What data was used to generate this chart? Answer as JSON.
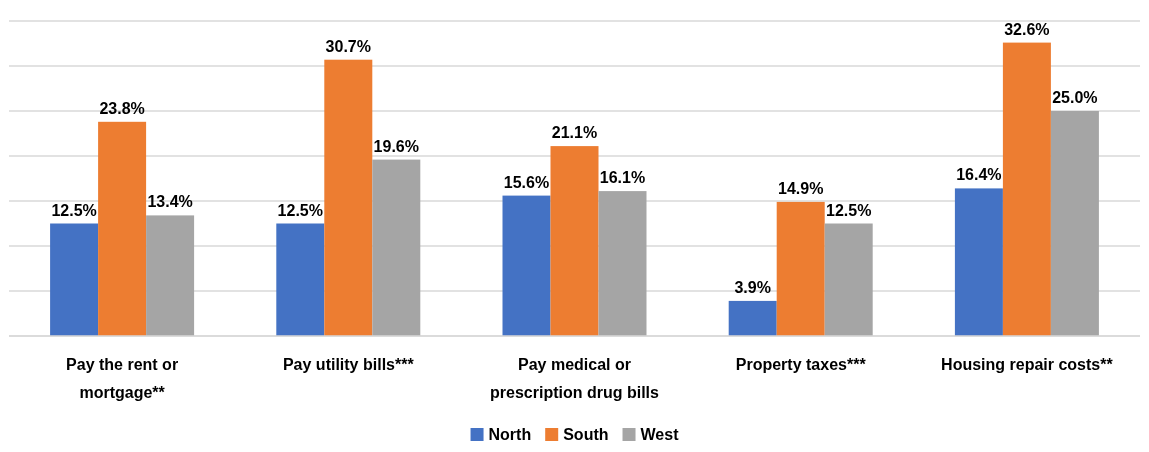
{
  "chart_data": {
    "type": "bar",
    "categories": [
      "Pay the rent or mortgage**",
      "Pay utility bills***",
      "Pay medical or prescription drug bills",
      "Property taxes***",
      "Housing repair costs**"
    ],
    "series": [
      {
        "name": "North",
        "color": "#4472c4",
        "values": [
          12.5,
          12.5,
          15.6,
          3.9,
          16.4
        ],
        "value_labels": [
          "12.5%",
          "12.5%",
          "15.6%",
          "3.9%",
          "16.4%"
        ]
      },
      {
        "name": "South",
        "color": "#ed7d31",
        "values": [
          23.8,
          30.7,
          21.1,
          14.9,
          32.6
        ],
        "value_labels": [
          "23.8%",
          "30.7%",
          "21.1%",
          "14.9%",
          "32.6%"
        ]
      },
      {
        "name": "West",
        "color": "#a5a5a5",
        "values": [
          13.4,
          19.6,
          16.1,
          12.5,
          25.0
        ],
        "value_labels": [
          "13.4%",
          "19.6%",
          "16.1%",
          "12.5%",
          "25.0%"
        ]
      }
    ],
    "ylim": [
      0,
      35
    ],
    "yticks": [
      {
        "value": 0,
        "label": null
      },
      {
        "value": 5,
        "label": null
      },
      {
        "value": 10,
        "label": null
      },
      {
        "value": 15,
        "label": null
      },
      {
        "value": 20,
        "label": null
      },
      {
        "value": 25,
        "label": null
      },
      {
        "value": 30,
        "label": null
      },
      {
        "value": 35,
        "label": null
      }
    ],
    "grid": "y",
    "tick_labels": "x",
    "legend": "bottom"
  }
}
